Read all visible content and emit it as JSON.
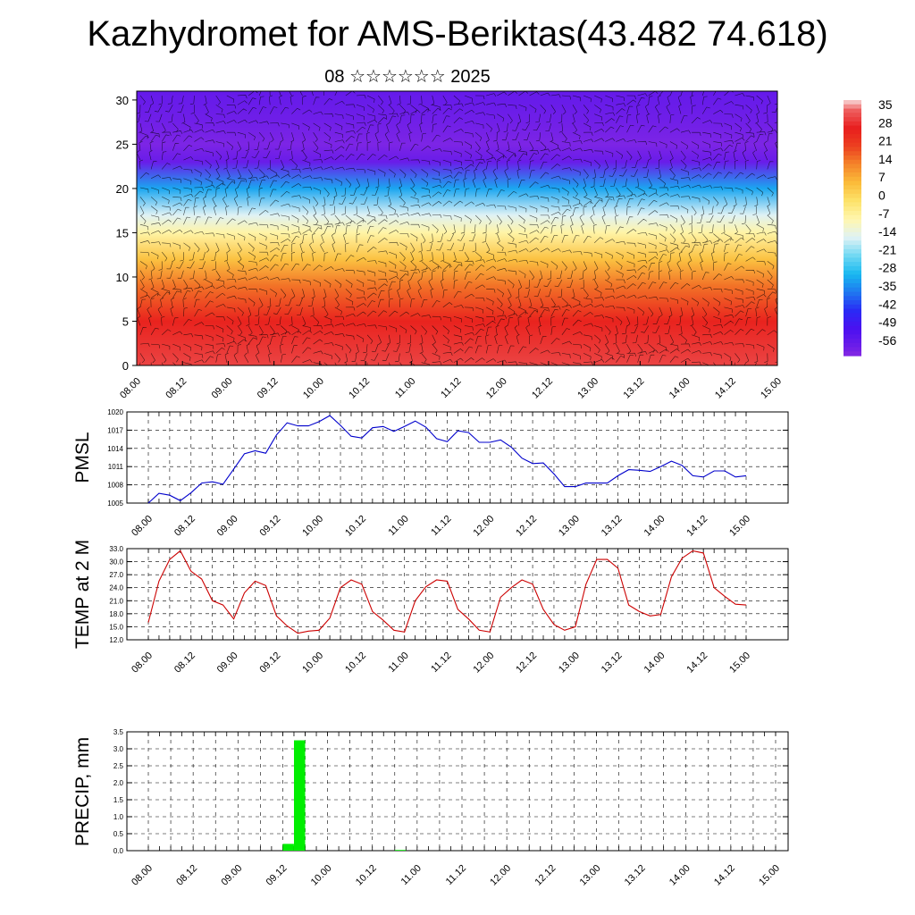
{
  "header": {
    "title": "Kazhydromet for AMS-Beriktas(43.482 74.618)",
    "subtitle": "08 ☆☆☆☆☆☆ 2025"
  },
  "chart_data": [
    {
      "type": "heatmap",
      "title": "",
      "x_tick_labels": [
        "08.00",
        "08.12",
        "09.00",
        "09.12",
        "10.00",
        "10.12",
        "11.00",
        "11.12",
        "12.00",
        "12.12",
        "13.00",
        "13.12",
        "14.00",
        "14.12",
        "15.00"
      ],
      "y_ticks": [
        0,
        5,
        10,
        15,
        20,
        25,
        30
      ],
      "ylim": [
        0,
        31
      ],
      "colorbar": {
        "labels": [
          "35",
          "28",
          "21",
          "14",
          "7",
          "0",
          "-7",
          "-14",
          "-21",
          "-28",
          "-35",
          "-42",
          "-49",
          "-56"
        ],
        "range": [
          -60,
          38
        ]
      },
      "bands": [
        {
          "level": 0,
          "temp": 32
        },
        {
          "level": 5,
          "temp": 27
        },
        {
          "level": 9,
          "temp": 16
        },
        {
          "level": 12,
          "temp": 6
        },
        {
          "level": 15,
          "temp": -6
        },
        {
          "level": 17,
          "temp": -14
        },
        {
          "level": 20,
          "temp": -30
        },
        {
          "level": 23,
          "temp": -55
        },
        {
          "level": 25,
          "temp": -58
        },
        {
          "level": 28,
          "temp": -56
        },
        {
          "level": 31,
          "temp": -54
        }
      ],
      "note_overlay": "wind barbs"
    },
    {
      "type": "line",
      "ylabel": "PMSL",
      "ylim": [
        1005,
        1020
      ],
      "y_ticks": [
        "1020",
        "1017",
        "1014",
        "1011",
        "1008",
        "1005"
      ],
      "x_tick_labels": [
        "08.00",
        "08.12",
        "09.00",
        "09.12",
        "10.00",
        "10.12",
        "11.00",
        "11.12",
        "12.00",
        "12.12",
        "13.00",
        "13.12",
        "14.00",
        "14.12",
        "15.00"
      ],
      "color": "#0000cc",
      "values": [
        1005.0,
        1006.6,
        1006.3,
        1005.4,
        1006.7,
        1008.3,
        1008.5,
        1008.1,
        1010.6,
        1013.1,
        1013.6,
        1013.2,
        1016.2,
        1018.2,
        1017.7,
        1017.7,
        1018.4,
        1019.4,
        1017.8,
        1016.0,
        1015.7,
        1017.4,
        1017.6,
        1016.8,
        1017.6,
        1018.5,
        1017.5,
        1015.6,
        1015.1,
        1016.9,
        1016.6,
        1015.0,
        1015.0,
        1015.4,
        1014.2,
        1012.4,
        1011.5,
        1011.6,
        1009.8,
        1007.7,
        1007.7,
        1008.3,
        1008.3,
        1008.3,
        1009.5,
        1010.5,
        1010.4,
        1010.2,
        1011.0,
        1011.9,
        1011.2,
        1009.5,
        1009.3,
        1010.3,
        1010.3,
        1009.3,
        1009.5
      ]
    },
    {
      "type": "line",
      "ylabel": "TEMP at 2 M",
      "ylim": [
        12,
        33
      ],
      "y_ticks": [
        "33.0",
        "30.0",
        "27.0",
        "24.0",
        "21.0",
        "18.0",
        "15.0",
        "12.0"
      ],
      "x_tick_labels": [
        "08.00",
        "08.12",
        "09.00",
        "09.12",
        "10.00",
        "10.12",
        "11.00",
        "11.12",
        "12.00",
        "12.12",
        "13.00",
        "13.12",
        "14.00",
        "14.12",
        "15.00"
      ],
      "color": "#cc0000",
      "values": [
        16.0,
        25.5,
        30.5,
        32.5,
        27.8,
        26.0,
        21.0,
        20.0,
        16.8,
        22.8,
        25.5,
        24.5,
        17.5,
        15.2,
        13.5,
        14.0,
        14.2,
        17.0,
        24.0,
        25.8,
        24.8,
        18.5,
        16.5,
        14.2,
        13.8,
        21.0,
        24.2,
        25.8,
        25.5,
        19.0,
        16.8,
        14.2,
        13.8,
        21.8,
        24.0,
        25.8,
        24.8,
        19.0,
        15.5,
        14.2,
        15.0,
        24.8,
        30.5,
        30.5,
        28.5,
        20.0,
        18.5,
        17.5,
        17.8,
        26.5,
        30.8,
        32.5,
        32.0,
        24.0,
        22.0,
        20.2,
        20.0
      ]
    },
    {
      "type": "bar",
      "ylabel": "PRECIP, mm",
      "ylim": [
        0,
        3.5
      ],
      "y_ticks": [
        "3.5",
        "3.0",
        "2.5",
        "2.0",
        "1.5",
        "1.0",
        "0.5",
        "0.0"
      ],
      "x_tick_labels": [
        "08.00",
        "08.12",
        "09.00",
        "09.12",
        "10.00",
        "10.12",
        "11.00",
        "11.12",
        "12.00",
        "12.12",
        "13.00",
        "13.12",
        "14.00",
        "14.12",
        "15.00"
      ],
      "color": "#00ee00",
      "bars": [
        {
          "step": 12.5,
          "value": 0.2
        },
        {
          "step": 13.5,
          "value": 3.25
        },
        {
          "step": 22.5,
          "value": 0.02
        }
      ]
    }
  ]
}
